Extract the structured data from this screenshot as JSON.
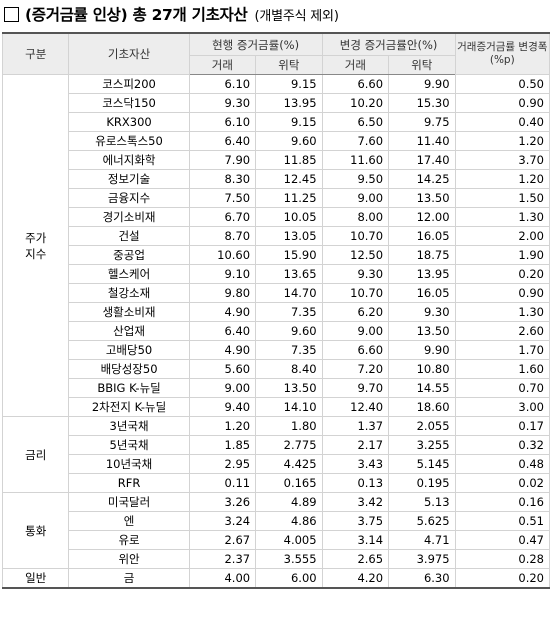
{
  "title": {
    "main": "(증거금률 인상) 총 27개 기초자산",
    "sub": "(개별주식 제외)"
  },
  "headers": {
    "group": "구분",
    "asset": "기초자산",
    "current": "현행 증거금률(%)",
    "changed": "변경 증거금률안(%)",
    "range": "거래증거금률 변경폭(%p)",
    "trade": "거래",
    "consign": "위탁"
  },
  "groups": [
    {
      "label": "주가\n지수",
      "rows": [
        {
          "asset": "코스피200",
          "cur_trade": "6.10",
          "cur_consign": "9.15",
          "new_trade": "6.60",
          "new_consign": "9.90",
          "change": "0.50"
        },
        {
          "asset": "코스닥150",
          "cur_trade": "9.30",
          "cur_consign": "13.95",
          "new_trade": "10.20",
          "new_consign": "15.30",
          "change": "0.90"
        },
        {
          "asset": "KRX300",
          "cur_trade": "6.10",
          "cur_consign": "9.15",
          "new_trade": "6.50",
          "new_consign": "9.75",
          "change": "0.40"
        },
        {
          "asset": "유로스톡스50",
          "cur_trade": "6.40",
          "cur_consign": "9.60",
          "new_trade": "7.60",
          "new_consign": "11.40",
          "change": "1.20"
        },
        {
          "asset": "에너지화학",
          "cur_trade": "7.90",
          "cur_consign": "11.85",
          "new_trade": "11.60",
          "new_consign": "17.40",
          "change": "3.70"
        },
        {
          "asset": "정보기술",
          "cur_trade": "8.30",
          "cur_consign": "12.45",
          "new_trade": "9.50",
          "new_consign": "14.25",
          "change": "1.20"
        },
        {
          "asset": "금융지수",
          "cur_trade": "7.50",
          "cur_consign": "11.25",
          "new_trade": "9.00",
          "new_consign": "13.50",
          "change": "1.50"
        },
        {
          "asset": "경기소비재",
          "cur_trade": "6.70",
          "cur_consign": "10.05",
          "new_trade": "8.00",
          "new_consign": "12.00",
          "change": "1.30"
        },
        {
          "asset": "건설",
          "cur_trade": "8.70",
          "cur_consign": "13.05",
          "new_trade": "10.70",
          "new_consign": "16.05",
          "change": "2.00"
        },
        {
          "asset": "중공업",
          "cur_trade": "10.60",
          "cur_consign": "15.90",
          "new_trade": "12.50",
          "new_consign": "18.75",
          "change": "1.90"
        },
        {
          "asset": "헬스케어",
          "cur_trade": "9.10",
          "cur_consign": "13.65",
          "new_trade": "9.30",
          "new_consign": "13.95",
          "change": "0.20"
        },
        {
          "asset": "철강소재",
          "cur_trade": "9.80",
          "cur_consign": "14.70",
          "new_trade": "10.70",
          "new_consign": "16.05",
          "change": "0.90"
        },
        {
          "asset": "생활소비재",
          "cur_trade": "4.90",
          "cur_consign": "7.35",
          "new_trade": "6.20",
          "new_consign": "9.30",
          "change": "1.30"
        },
        {
          "asset": "산업재",
          "cur_trade": "6.40",
          "cur_consign": "9.60",
          "new_trade": "9.00",
          "new_consign": "13.50",
          "change": "2.60"
        },
        {
          "asset": "고배당50",
          "cur_trade": "4.90",
          "cur_consign": "7.35",
          "new_trade": "6.60",
          "new_consign": "9.90",
          "change": "1.70"
        },
        {
          "asset": "배당성장50",
          "cur_trade": "5.60",
          "cur_consign": "8.40",
          "new_trade": "7.20",
          "new_consign": "10.80",
          "change": "1.60"
        },
        {
          "asset": "BBIG K-뉴딜",
          "cur_trade": "9.00",
          "cur_consign": "13.50",
          "new_trade": "9.70",
          "new_consign": "14.55",
          "change": "0.70"
        },
        {
          "asset": "2차전지 K-뉴딜",
          "cur_trade": "9.40",
          "cur_consign": "14.10",
          "new_trade": "12.40",
          "new_consign": "18.60",
          "change": "3.00"
        }
      ]
    },
    {
      "label": "금리",
      "rows": [
        {
          "asset": "3년국채",
          "cur_trade": "1.20",
          "cur_consign": "1.80",
          "new_trade": "1.37",
          "new_consign": "2.055",
          "change": "0.17"
        },
        {
          "asset": "5년국채",
          "cur_trade": "1.85",
          "cur_consign": "2.775",
          "new_trade": "2.17",
          "new_consign": "3.255",
          "change": "0.32"
        },
        {
          "asset": "10년국채",
          "cur_trade": "2.95",
          "cur_consign": "4.425",
          "new_trade": "3.43",
          "new_consign": "5.145",
          "change": "0.48"
        },
        {
          "asset": "RFR",
          "cur_trade": "0.11",
          "cur_consign": "0.165",
          "new_trade": "0.13",
          "new_consign": "0.195",
          "change": "0.02"
        }
      ]
    },
    {
      "label": "통화",
      "rows": [
        {
          "asset": "미국달러",
          "cur_trade": "3.26",
          "cur_consign": "4.89",
          "new_trade": "3.42",
          "new_consign": "5.13",
          "change": "0.16"
        },
        {
          "asset": "엔",
          "cur_trade": "3.24",
          "cur_consign": "4.86",
          "new_trade": "3.75",
          "new_consign": "5.625",
          "change": "0.51"
        },
        {
          "asset": "유로",
          "cur_trade": "2.67",
          "cur_consign": "4.005",
          "new_trade": "3.14",
          "new_consign": "4.71",
          "change": "0.47"
        },
        {
          "asset": "위안",
          "cur_trade": "2.37",
          "cur_consign": "3.555",
          "new_trade": "2.65",
          "new_consign": "3.975",
          "change": "0.28"
        }
      ]
    },
    {
      "label": "일반",
      "rows": [
        {
          "asset": "금",
          "cur_trade": "4.00",
          "cur_consign": "6.00",
          "new_trade": "4.20",
          "new_consign": "6.30",
          "change": "0.20"
        }
      ]
    }
  ]
}
